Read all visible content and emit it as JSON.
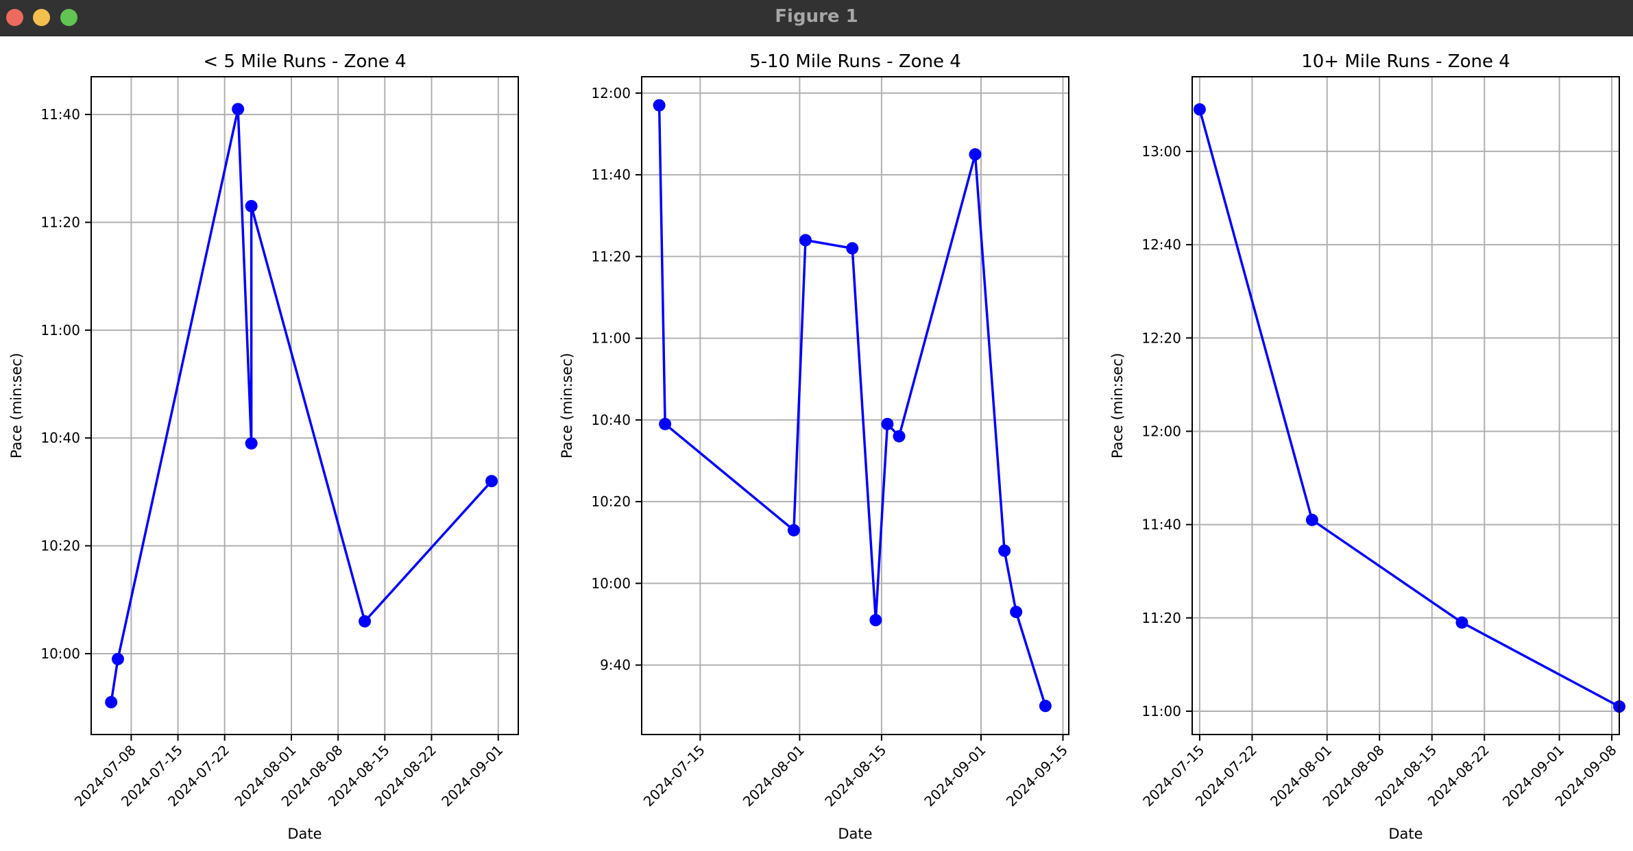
{
  "window": {
    "title": "Figure 1",
    "controls": [
      "close-button",
      "minimize-button",
      "zoom-button"
    ]
  },
  "colors": {
    "line": "#0000ff",
    "grid": "#b0b0b0",
    "axes": "#000000"
  },
  "chart_data": [
    {
      "type": "line",
      "title": "< 5 Mile Runs - Zone 4",
      "xlabel": "Date",
      "ylabel": "Pace (min:sec)",
      "grid": true,
      "marker": "circle",
      "x_ticks": [
        "2024-07-08",
        "2024-07-15",
        "2024-07-22",
        "2024-08-01",
        "2024-08-08",
        "2024-08-15",
        "2024-08-22",
        "2024-09-01"
      ],
      "y_ticks": [
        "10:00",
        "10:20",
        "10:40",
        "11:00",
        "11:20",
        "11:40"
      ],
      "xlim": [
        "2024-07-02",
        "2024-09-04"
      ],
      "ylim": [
        "9:45",
        "11:47"
      ],
      "series": [
        {
          "x": [
            "2024-07-05",
            "2024-07-06",
            "2024-07-24",
            "2024-07-26",
            "2024-07-26",
            "2024-08-12",
            "2024-08-31"
          ],
          "y": [
            "9:51",
            "9:59",
            "11:41",
            "10:39",
            "11:23",
            "10:06",
            "10:32"
          ]
        }
      ]
    },
    {
      "type": "line",
      "title": "5-10 Mile Runs - Zone 4",
      "xlabel": "Date",
      "ylabel": "Pace (min:sec)",
      "grid": true,
      "marker": "circle",
      "x_ticks": [
        "2024-07-15",
        "2024-08-01",
        "2024-08-15",
        "2024-09-01",
        "2024-09-15"
      ],
      "y_ticks": [
        "9:40",
        "10:00",
        "10:20",
        "10:40",
        "11:00",
        "11:20",
        "11:40",
        "12:00"
      ],
      "xlim": [
        "2024-07-05",
        "2024-09-16"
      ],
      "ylim": [
        "9:23",
        "12:04"
      ],
      "series": [
        {
          "x": [
            "2024-07-08",
            "2024-07-09",
            "2024-07-31",
            "2024-08-02",
            "2024-08-10",
            "2024-08-14",
            "2024-08-16",
            "2024-08-18",
            "2024-08-31",
            "2024-09-05",
            "2024-09-07",
            "2024-09-12"
          ],
          "y": [
            "11:57",
            "10:39",
            "10:13",
            "11:24",
            "11:22",
            "9:51",
            "10:39",
            "10:36",
            "11:45",
            "10:08",
            "9:53",
            "9:30"
          ]
        }
      ]
    },
    {
      "type": "line",
      "title": "10+ Mile Runs - Zone 4",
      "xlabel": "Date",
      "ylabel": "Pace (min:sec)",
      "grid": true,
      "marker": "circle",
      "x_ticks": [
        "2024-07-15",
        "2024-07-22",
        "2024-08-01",
        "2024-08-08",
        "2024-08-15",
        "2024-08-22",
        "2024-09-01",
        "2024-09-08"
      ],
      "y_ticks": [
        "11:00",
        "11:20",
        "11:40",
        "12:00",
        "12:20",
        "12:40",
        "13:00"
      ],
      "xlim": [
        "2024-07-14",
        "2024-09-09"
      ],
      "ylim": [
        "10:55",
        "13:16"
      ],
      "series": [
        {
          "x": [
            "2024-07-15",
            "2024-07-30",
            "2024-08-19",
            "2024-09-09"
          ],
          "y": [
            "13:09",
            "11:41",
            "11:19",
            "11:01"
          ]
        }
      ]
    }
  ]
}
